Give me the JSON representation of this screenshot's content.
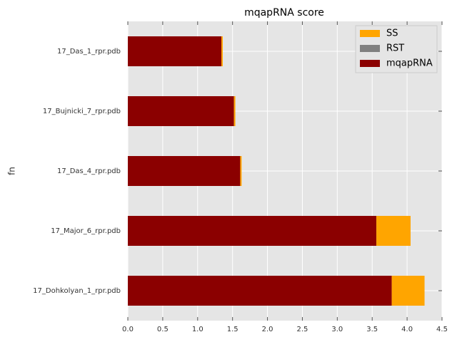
{
  "chart_data": {
    "type": "barh_stacked",
    "title": "mqapRNA score",
    "ylabel": "fn",
    "categories": [
      "17_Dohkolyan_1_rpr.pdb",
      "17_Major_6_rpr.pdb",
      "17_Das_4_rpr.pdb",
      "17_Bujnicki_7_rpr.pdb",
      "17_Das_1_rpr.pdb"
    ],
    "series": [
      {
        "name": "mqapRNA",
        "color": "#8b0000",
        "values": [
          3.78,
          3.56,
          1.61,
          1.52,
          1.34
        ]
      },
      {
        "name": "RST",
        "color": "#808080",
        "values": [
          0,
          0,
          0,
          0,
          0
        ]
      },
      {
        "name": "SS",
        "color": "#ffa500",
        "values": [
          0.47,
          0.49,
          0.02,
          0.02,
          0.02
        ]
      }
    ],
    "xlim": [
      0,
      4.5
    ],
    "xticks": [
      {
        "value": 0,
        "label": "0.0"
      },
      0.5,
      {
        "value": 1,
        "label": "1.0"
      },
      1.5,
      {
        "value": 2,
        "label": "2.0"
      },
      2.5,
      {
        "value": 3,
        "label": "3.0"
      },
      3.5,
      {
        "value": 4,
        "label": "4.0"
      },
      4.5
    ],
    "grid": true,
    "legend": "upper-right"
  }
}
